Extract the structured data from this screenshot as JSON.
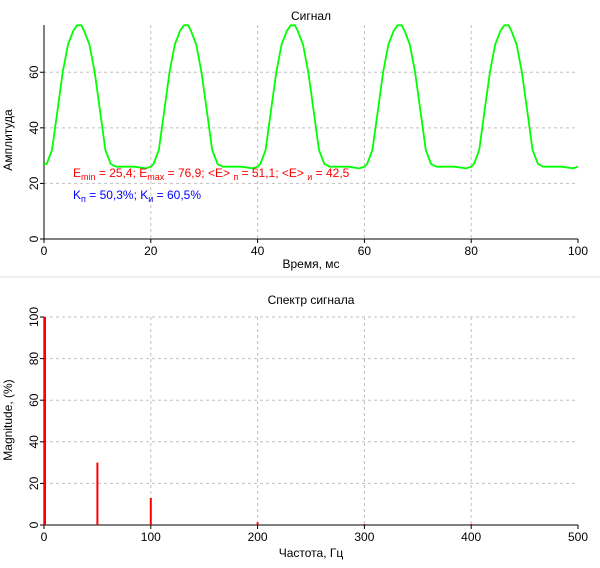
{
  "colors": {
    "signal_line": "#00ff00",
    "spectrum_bar": "#ff0000",
    "annotation_e": "#ff0000",
    "annotation_k": "#0000ff",
    "grid": "#c0c0c0",
    "axis": "#000000"
  },
  "annotations": {
    "e_min_label": "E",
    "e_min_sub": "min",
    "e_min_value": " = 25,4; ",
    "e_max_label": "E",
    "e_max_sub": "max",
    "e_max_value": " = 76,9; ",
    "e_mean_p_label": "<E> ",
    "e_mean_p_sub": "п",
    "e_mean_p_value": " = 51,1; ",
    "e_mean_i_label": "<E> ",
    "e_mean_i_sub": "и",
    "e_mean_i_value": " = 42,5",
    "k_p_label": "K",
    "k_p_sub": "п",
    "k_p_value": " = 50,3%; ",
    "k_i_label": "K",
    "k_i_sub": "и",
    "k_i_value": " = 60,5%"
  },
  "chart_data": [
    {
      "type": "line",
      "title": "Сигнал",
      "xlabel": "Время, мс",
      "ylabel": "Амплитуда",
      "xlim": [
        0,
        100
      ],
      "ylim": [
        0,
        77
      ],
      "xticks": [
        0,
        20,
        40,
        60,
        80,
        100
      ],
      "yticks": [
        0,
        20,
        40,
        60
      ],
      "grid": true,
      "series": [
        {
          "x": [
            0,
            0.5,
            1.5,
            2.5,
            3.5,
            4.5,
            5.5,
            6.2,
            7,
            7.5,
            8.5,
            9.5,
            10.5,
            11.5,
            12.5,
            13.5,
            15,
            17,
            19,
            20,
            20.5,
            21.5,
            22.5,
            23.5,
            24.5,
            25.5,
            26.2,
            27,
            27.5,
            28.5,
            29.5,
            30.5,
            31.5,
            32.5,
            33.5,
            35,
            37,
            39,
            40,
            40.5,
            41.5,
            42.5,
            43.5,
            44.5,
            45.5,
            46.2,
            47,
            47.5,
            48.5,
            49.5,
            50.5,
            51.5,
            52.5,
            53.5,
            55,
            57,
            59,
            60,
            60.5,
            61.5,
            62.5,
            63.5,
            64.5,
            65.5,
            66.2,
            67,
            67.5,
            68.5,
            69.5,
            70.5,
            71.5,
            72.5,
            73.5,
            75,
            77,
            79,
            80,
            80.5,
            81.5,
            82.5,
            83.5,
            84.5,
            85.5,
            86.2,
            87,
            87.5,
            88.5,
            89.5,
            90.5,
            91.5,
            92.5,
            93.5,
            95,
            97,
            99,
            100
          ],
          "values": [
            27,
            27,
            32,
            46,
            60,
            70,
            75,
            76.9,
            76.9,
            75,
            70,
            60,
            46,
            32,
            27,
            26,
            26,
            26,
            25.4,
            26,
            27,
            32,
            46,
            60,
            70,
            75,
            76.9,
            76.9,
            75,
            70,
            60,
            46,
            32,
            27,
            26,
            26,
            26,
            25.4,
            26,
            27,
            32,
            46,
            60,
            70,
            75,
            76.9,
            76.9,
            75,
            70,
            60,
            46,
            32,
            27,
            26,
            26,
            26,
            25.4,
            26,
            27,
            32,
            46,
            60,
            70,
            75,
            76.9,
            76.9,
            75,
            70,
            60,
            46,
            32,
            27,
            26,
            26,
            26,
            25.4,
            26,
            27,
            32,
            46,
            60,
            70,
            75,
            76.9,
            76.9,
            75,
            70,
            60,
            46,
            32,
            27,
            26,
            26,
            26,
            25.4,
            26
          ]
        }
      ]
    },
    {
      "type": "bar",
      "title": "Спектр сигнала",
      "xlabel": "Частота, Гц",
      "ylabel": "Magnitude, (%)",
      "xlim": [
        0,
        500
      ],
      "ylim": [
        0,
        100
      ],
      "xticks": [
        0,
        100,
        200,
        300,
        400,
        500
      ],
      "yticks": [
        0,
        20,
        40,
        60,
        80,
        100
      ],
      "grid": true,
      "series": [
        {
          "x": [
            0,
            50,
            100,
            200,
            300,
            400
          ],
          "values": [
            100,
            30,
            13,
            1.3,
            0.5,
            0.5
          ]
        }
      ]
    }
  ]
}
